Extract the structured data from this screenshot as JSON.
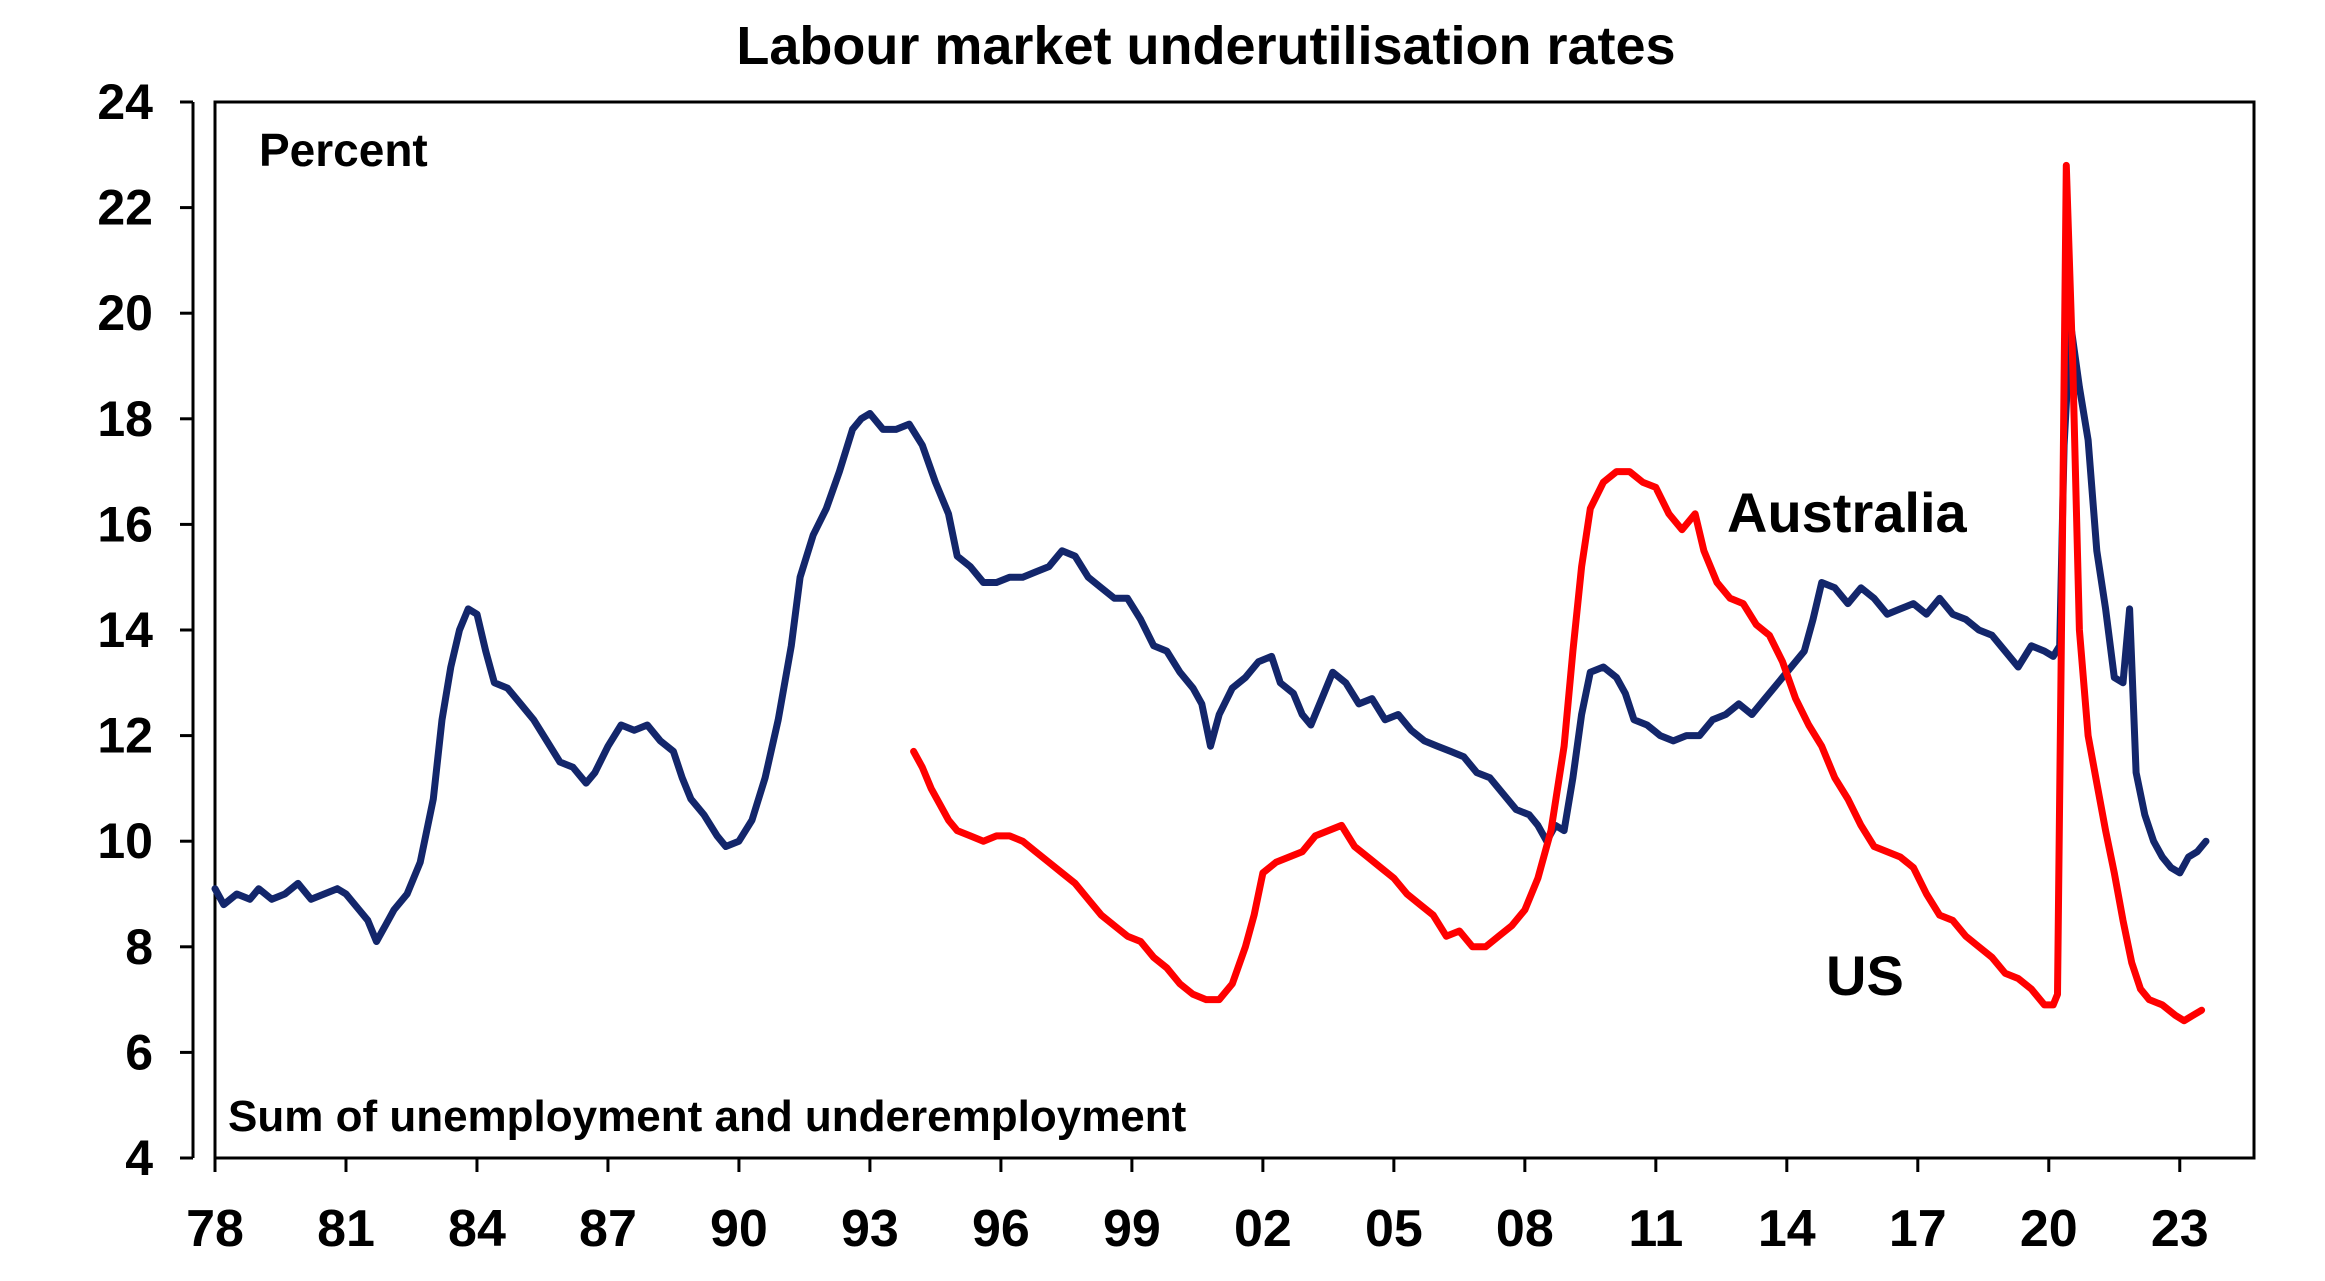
{
  "chart_data": {
    "type": "line",
    "title": "Labour market underutilisation rates",
    "unit_label": "Percent",
    "footnote": "Sum of unemployment and underemployment",
    "ylim": [
      4,
      24
    ],
    "yticks": [
      4,
      6,
      8,
      10,
      12,
      14,
      16,
      18,
      20,
      22,
      24
    ],
    "xlim": [
      1978.0,
      2024.7
    ],
    "xticks": [
      {
        "value": 1978,
        "label": "78"
      },
      {
        "value": 1981,
        "label": "81"
      },
      {
        "value": 1984,
        "label": "84"
      },
      {
        "value": 1987,
        "label": "87"
      },
      {
        "value": 1990,
        "label": "90"
      },
      {
        "value": 1993,
        "label": "93"
      },
      {
        "value": 1996,
        "label": "96"
      },
      {
        "value": 1999,
        "label": "99"
      },
      {
        "value": 2002,
        "label": "02"
      },
      {
        "value": 2005,
        "label": "05"
      },
      {
        "value": 2008,
        "label": "08"
      },
      {
        "value": 2011,
        "label": "11"
      },
      {
        "value": 2014,
        "label": "14"
      },
      {
        "value": 2017,
        "label": "17"
      },
      {
        "value": 2020,
        "label": "20"
      },
      {
        "value": 2023,
        "label": "23"
      }
    ],
    "grid": false,
    "legend": "inline labels",
    "series": [
      {
        "name": "Australia",
        "color": "#13266b",
        "points": [
          [
            1978.0,
            9.1
          ],
          [
            1978.2,
            8.8
          ],
          [
            1978.5,
            9.0
          ],
          [
            1978.8,
            8.9
          ],
          [
            1979.0,
            9.1
          ],
          [
            1979.3,
            8.9
          ],
          [
            1979.6,
            9.0
          ],
          [
            1979.9,
            9.2
          ],
          [
            1980.2,
            8.9
          ],
          [
            1980.5,
            9.0
          ],
          [
            1980.8,
            9.1
          ],
          [
            1981.0,
            9.0
          ],
          [
            1981.3,
            8.7
          ],
          [
            1981.5,
            8.5
          ],
          [
            1981.7,
            8.1
          ],
          [
            1981.9,
            8.4
          ],
          [
            1982.1,
            8.7
          ],
          [
            1982.4,
            9.0
          ],
          [
            1982.7,
            9.6
          ],
          [
            1983.0,
            10.8
          ],
          [
            1983.2,
            12.3
          ],
          [
            1983.4,
            13.3
          ],
          [
            1983.6,
            14.0
          ],
          [
            1983.8,
            14.4
          ],
          [
            1984.0,
            14.3
          ],
          [
            1984.2,
            13.6
          ],
          [
            1984.4,
            13.0
          ],
          [
            1984.7,
            12.9
          ],
          [
            1985.0,
            12.6
          ],
          [
            1985.3,
            12.3
          ],
          [
            1985.6,
            11.9
          ],
          [
            1985.9,
            11.5
          ],
          [
            1986.2,
            11.4
          ],
          [
            1986.5,
            11.1
          ],
          [
            1986.7,
            11.3
          ],
          [
            1987.0,
            11.8
          ],
          [
            1987.3,
            12.2
          ],
          [
            1987.6,
            12.1
          ],
          [
            1987.9,
            12.2
          ],
          [
            1988.2,
            11.9
          ],
          [
            1988.5,
            11.7
          ],
          [
            1988.7,
            11.2
          ],
          [
            1988.9,
            10.8
          ],
          [
            1989.2,
            10.5
          ],
          [
            1989.5,
            10.1
          ],
          [
            1989.7,
            9.9
          ],
          [
            1990.0,
            10.0
          ],
          [
            1990.3,
            10.4
          ],
          [
            1990.6,
            11.2
          ],
          [
            1990.9,
            12.3
          ],
          [
            1991.2,
            13.7
          ],
          [
            1991.4,
            15.0
          ],
          [
            1991.7,
            15.8
          ],
          [
            1992.0,
            16.3
          ],
          [
            1992.3,
            17.0
          ],
          [
            1992.6,
            17.8
          ],
          [
            1992.8,
            18.0
          ],
          [
            1993.0,
            18.1
          ],
          [
            1993.3,
            17.8
          ],
          [
            1993.6,
            17.8
          ],
          [
            1993.9,
            17.9
          ],
          [
            1994.2,
            17.5
          ],
          [
            1994.5,
            16.8
          ],
          [
            1994.8,
            16.2
          ],
          [
            1995.0,
            15.4
          ],
          [
            1995.3,
            15.2
          ],
          [
            1995.6,
            14.9
          ],
          [
            1995.9,
            14.9
          ],
          [
            1996.2,
            15.0
          ],
          [
            1996.5,
            15.0
          ],
          [
            1996.8,
            15.1
          ],
          [
            1997.1,
            15.2
          ],
          [
            1997.4,
            15.5
          ],
          [
            1997.7,
            15.4
          ],
          [
            1998.0,
            15.0
          ],
          [
            1998.3,
            14.8
          ],
          [
            1998.6,
            14.6
          ],
          [
            1998.9,
            14.6
          ],
          [
            1999.2,
            14.2
          ],
          [
            1999.5,
            13.7
          ],
          [
            1999.8,
            13.6
          ],
          [
            2000.1,
            13.2
          ],
          [
            2000.4,
            12.9
          ],
          [
            2000.6,
            12.6
          ],
          [
            2000.8,
            11.8
          ],
          [
            2001.0,
            12.4
          ],
          [
            2001.3,
            12.9
          ],
          [
            2001.6,
            13.1
          ],
          [
            2001.9,
            13.4
          ],
          [
            2002.2,
            13.5
          ],
          [
            2002.4,
            13.0
          ],
          [
            2002.7,
            12.8
          ],
          [
            2002.9,
            12.4
          ],
          [
            2003.1,
            12.2
          ],
          [
            2003.4,
            12.8
          ],
          [
            2003.6,
            13.2
          ],
          [
            2003.9,
            13.0
          ],
          [
            2004.2,
            12.6
          ],
          [
            2004.5,
            12.7
          ],
          [
            2004.8,
            12.3
          ],
          [
            2005.1,
            12.4
          ],
          [
            2005.4,
            12.1
          ],
          [
            2005.7,
            11.9
          ],
          [
            2006.0,
            11.8
          ],
          [
            2006.3,
            11.7
          ],
          [
            2006.6,
            11.6
          ],
          [
            2006.9,
            11.3
          ],
          [
            2007.2,
            11.2
          ],
          [
            2007.5,
            10.9
          ],
          [
            2007.8,
            10.6
          ],
          [
            2008.1,
            10.5
          ],
          [
            2008.3,
            10.3
          ],
          [
            2008.5,
            10.0
          ],
          [
            2008.7,
            10.3
          ],
          [
            2008.9,
            10.2
          ],
          [
            2009.1,
            11.2
          ],
          [
            2009.3,
            12.4
          ],
          [
            2009.5,
            13.2
          ],
          [
            2009.8,
            13.3
          ],
          [
            2010.1,
            13.1
          ],
          [
            2010.3,
            12.8
          ],
          [
            2010.5,
            12.3
          ],
          [
            2010.8,
            12.2
          ],
          [
            2011.1,
            12.0
          ],
          [
            2011.4,
            11.9
          ],
          [
            2011.7,
            12.0
          ],
          [
            2012.0,
            12.0
          ],
          [
            2012.3,
            12.3
          ],
          [
            2012.6,
            12.4
          ],
          [
            2012.9,
            12.6
          ],
          [
            2013.2,
            12.4
          ],
          [
            2013.5,
            12.7
          ],
          [
            2013.8,
            13.0
          ],
          [
            2014.1,
            13.3
          ],
          [
            2014.4,
            13.6
          ],
          [
            2014.6,
            14.2
          ],
          [
            2014.8,
            14.9
          ],
          [
            2015.1,
            14.8
          ],
          [
            2015.4,
            14.5
          ],
          [
            2015.7,
            14.8
          ],
          [
            2016.0,
            14.6
          ],
          [
            2016.3,
            14.3
          ],
          [
            2016.6,
            14.4
          ],
          [
            2016.9,
            14.5
          ],
          [
            2017.2,
            14.3
          ],
          [
            2017.5,
            14.6
          ],
          [
            2017.8,
            14.3
          ],
          [
            2018.1,
            14.2
          ],
          [
            2018.4,
            14.0
          ],
          [
            2018.7,
            13.9
          ],
          [
            2019.0,
            13.6
          ],
          [
            2019.3,
            13.3
          ],
          [
            2019.6,
            13.7
          ],
          [
            2019.9,
            13.6
          ],
          [
            2020.1,
            13.5
          ],
          [
            2020.25,
            13.7
          ],
          [
            2020.35,
            17.5
          ],
          [
            2020.5,
            19.8
          ],
          [
            2020.7,
            18.6
          ],
          [
            2020.9,
            17.6
          ],
          [
            2021.1,
            15.5
          ],
          [
            2021.3,
            14.4
          ],
          [
            2021.5,
            13.1
          ],
          [
            2021.7,
            13.0
          ],
          [
            2021.85,
            14.4
          ],
          [
            2022.0,
            11.3
          ],
          [
            2022.2,
            10.5
          ],
          [
            2022.4,
            10.0
          ],
          [
            2022.6,
            9.7
          ],
          [
            2022.8,
            9.5
          ],
          [
            2023.0,
            9.4
          ],
          [
            2023.2,
            9.7
          ],
          [
            2023.4,
            9.8
          ],
          [
            2023.6,
            10.0
          ]
        ]
      },
      {
        "name": "US",
        "color": "#ff0000",
        "points": [
          [
            1994.0,
            11.7
          ],
          [
            1994.2,
            11.4
          ],
          [
            1994.4,
            11.0
          ],
          [
            1994.6,
            10.7
          ],
          [
            1994.8,
            10.4
          ],
          [
            1995.0,
            10.2
          ],
          [
            1995.3,
            10.1
          ],
          [
            1995.6,
            10.0
          ],
          [
            1995.9,
            10.1
          ],
          [
            1996.2,
            10.1
          ],
          [
            1996.5,
            10.0
          ],
          [
            1996.8,
            9.8
          ],
          [
            1997.1,
            9.6
          ],
          [
            1997.4,
            9.4
          ],
          [
            1997.7,
            9.2
          ],
          [
            1998.0,
            8.9
          ],
          [
            1998.3,
            8.6
          ],
          [
            1998.6,
            8.4
          ],
          [
            1998.9,
            8.2
          ],
          [
            1999.2,
            8.1
          ],
          [
            1999.5,
            7.8
          ],
          [
            1999.8,
            7.6
          ],
          [
            2000.1,
            7.3
          ],
          [
            2000.4,
            7.1
          ],
          [
            2000.7,
            7.0
          ],
          [
            2001.0,
            7.0
          ],
          [
            2001.3,
            7.3
          ],
          [
            2001.6,
            8.0
          ],
          [
            2001.8,
            8.6
          ],
          [
            2002.0,
            9.4
          ],
          [
            2002.3,
            9.6
          ],
          [
            2002.6,
            9.7
          ],
          [
            2002.9,
            9.8
          ],
          [
            2003.2,
            10.1
          ],
          [
            2003.5,
            10.2
          ],
          [
            2003.8,
            10.3
          ],
          [
            2004.1,
            9.9
          ],
          [
            2004.4,
            9.7
          ],
          [
            2004.7,
            9.5
          ],
          [
            2005.0,
            9.3
          ],
          [
            2005.3,
            9.0
          ],
          [
            2005.6,
            8.8
          ],
          [
            2005.9,
            8.6
          ],
          [
            2006.2,
            8.2
          ],
          [
            2006.5,
            8.3
          ],
          [
            2006.8,
            8.0
          ],
          [
            2007.1,
            8.0
          ],
          [
            2007.4,
            8.2
          ],
          [
            2007.7,
            8.4
          ],
          [
            2008.0,
            8.7
          ],
          [
            2008.3,
            9.3
          ],
          [
            2008.6,
            10.2
          ],
          [
            2008.9,
            11.8
          ],
          [
            2009.1,
            13.6
          ],
          [
            2009.3,
            15.2
          ],
          [
            2009.5,
            16.3
          ],
          [
            2009.8,
            16.8
          ],
          [
            2010.1,
            17.0
          ],
          [
            2010.4,
            17.0
          ],
          [
            2010.7,
            16.8
          ],
          [
            2011.0,
            16.7
          ],
          [
            2011.3,
            16.2
          ],
          [
            2011.6,
            15.9
          ],
          [
            2011.9,
            16.2
          ],
          [
            2012.1,
            15.5
          ],
          [
            2012.4,
            14.9
          ],
          [
            2012.7,
            14.6
          ],
          [
            2013.0,
            14.5
          ],
          [
            2013.3,
            14.1
          ],
          [
            2013.6,
            13.9
          ],
          [
            2013.9,
            13.4
          ],
          [
            2014.2,
            12.7
          ],
          [
            2014.5,
            12.2
          ],
          [
            2014.8,
            11.8
          ],
          [
            2015.1,
            11.2
          ],
          [
            2015.4,
            10.8
          ],
          [
            2015.7,
            10.3
          ],
          [
            2016.0,
            9.9
          ],
          [
            2016.3,
            9.8
          ],
          [
            2016.6,
            9.7
          ],
          [
            2016.9,
            9.5
          ],
          [
            2017.2,
            9.0
          ],
          [
            2017.5,
            8.6
          ],
          [
            2017.8,
            8.5
          ],
          [
            2018.1,
            8.2
          ],
          [
            2018.4,
            8.0
          ],
          [
            2018.7,
            7.8
          ],
          [
            2019.0,
            7.5
          ],
          [
            2019.3,
            7.4
          ],
          [
            2019.6,
            7.2
          ],
          [
            2019.9,
            6.9
          ],
          [
            2020.1,
            6.9
          ],
          [
            2020.2,
            7.1
          ],
          [
            2020.3,
            14.7
          ],
          [
            2020.4,
            22.8
          ],
          [
            2020.55,
            19.0
          ],
          [
            2020.7,
            14.0
          ],
          [
            2020.9,
            12.0
          ],
          [
            2021.1,
            11.1
          ],
          [
            2021.3,
            10.2
          ],
          [
            2021.5,
            9.4
          ],
          [
            2021.7,
            8.5
          ],
          [
            2021.9,
            7.7
          ],
          [
            2022.1,
            7.2
          ],
          [
            2022.3,
            7.0
          ],
          [
            2022.6,
            6.9
          ],
          [
            2022.9,
            6.7
          ],
          [
            2023.1,
            6.6
          ],
          [
            2023.3,
            6.7
          ],
          [
            2023.5,
            6.8
          ]
        ]
      }
    ],
    "annotations": [
      {
        "text": "Australia",
        "series": "Australia"
      },
      {
        "text": "US",
        "series": "US"
      }
    ]
  }
}
